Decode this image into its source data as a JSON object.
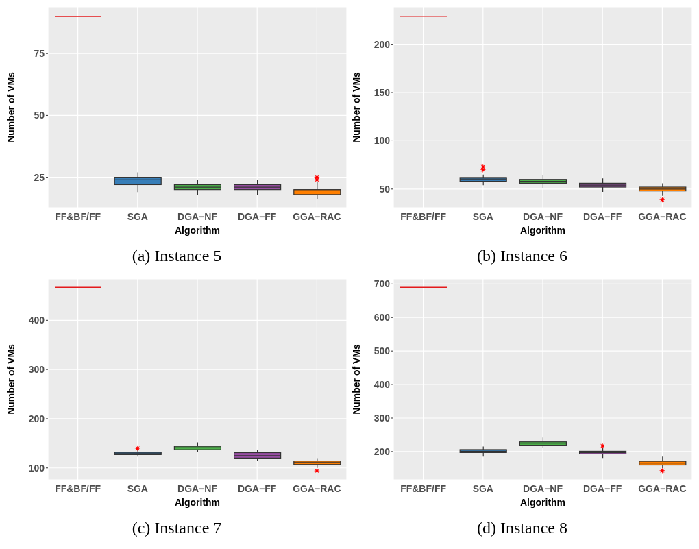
{
  "chart_data": [
    {
      "type": "box",
      "title": "(a) Instance 5",
      "xlabel": "Algorithm",
      "ylabel": "Number of VMs",
      "categories": [
        "FF&BF/FF",
        "SGA",
        "DGA−NF",
        "DGA−FF",
        "GGA−RAC"
      ],
      "colors": [
        "#e41a1c",
        "#377eb8",
        "#4daf4a",
        "#984ea3",
        "#ff7f00"
      ],
      "ylim": [
        12.7,
        93.9
      ],
      "yticks": [
        25,
        50,
        75
      ],
      "grid": true,
      "marker": "star",
      "boxes": [
        {
          "low": 90,
          "q1": 90,
          "median": 90,
          "q3": 90,
          "high": 90
        },
        {
          "low": 19,
          "q1": 22,
          "median": 24,
          "q3": 25,
          "high": 27
        },
        {
          "low": 18,
          "q1": 20,
          "median": 21,
          "q3": 22,
          "high": 24
        },
        {
          "low": 18,
          "q1": 20,
          "median": 21,
          "q3": 22,
          "high": 24
        },
        {
          "low": 16,
          "q1": 18,
          "median": 19.5,
          "q3": 20,
          "high": 23,
          "outliers": [
            24,
            25
          ]
        }
      ]
    },
    {
      "type": "box",
      "title": "(b) Instance 6",
      "xlabel": "Algorithm",
      "ylabel": "Number of VMs",
      "categories": [
        "FF&BF/FF",
        "SGA",
        "DGA−NF",
        "DGA−FF",
        "GGA−RAC"
      ],
      "colors": [
        "#e41a1c",
        "#377eb8",
        "#4daf4a",
        "#984ea3",
        "#ff7f00"
      ],
      "ylim": [
        30.7,
        238.8
      ],
      "yticks": [
        50,
        100,
        150,
        200
      ],
      "grid": true,
      "marker": "star",
      "boxes": [
        {
          "low": 229,
          "q1": 229,
          "median": 229,
          "q3": 229,
          "high": 229
        },
        {
          "low": 54,
          "q1": 58,
          "median": 60.5,
          "q3": 62,
          "high": 65,
          "outliers": [
            70,
            73
          ]
        },
        {
          "low": 51,
          "q1": 56,
          "median": 58,
          "q3": 60,
          "high": 64
        },
        {
          "low": 47,
          "q1": 52,
          "median": 54,
          "q3": 56,
          "high": 61
        },
        {
          "low": 43,
          "q1": 48,
          "median": 50,
          "q3": 52,
          "high": 56,
          "outliers": [
            39
          ]
        }
      ]
    },
    {
      "type": "box",
      "title": "(c) Instance 7",
      "xlabel": "Algorithm",
      "ylabel": "Number of VMs",
      "categories": [
        "FF&BF/FF",
        "SGA",
        "DGA−NF",
        "DGA−FF",
        "GGA−RAC"
      ],
      "colors": [
        "#e41a1c",
        "#377eb8",
        "#4daf4a",
        "#984ea3",
        "#ff7f00"
      ],
      "ylim": [
        76,
        484
      ],
      "yticks": [
        100,
        200,
        300,
        400
      ],
      "grid": true,
      "marker": "star",
      "boxes": [
        {
          "low": 467,
          "q1": 467,
          "median": 467,
          "q3": 467,
          "high": 467
        },
        {
          "low": 123,
          "q1": 127,
          "median": 130,
          "q3": 132,
          "high": 137,
          "outliers": [
            140
          ]
        },
        {
          "low": 132,
          "q1": 137,
          "median": 141,
          "q3": 144,
          "high": 152
        },
        {
          "low": 114,
          "q1": 120,
          "median": 125,
          "q3": 131,
          "high": 136
        },
        {
          "low": 100,
          "q1": 107,
          "median": 111,
          "q3": 114,
          "high": 120,
          "outliers": [
            94
          ]
        }
      ]
    },
    {
      "type": "box",
      "title": "(d) Instance 8",
      "xlabel": "Algorithm",
      "ylabel": "Number of VMs",
      "categories": [
        "FF&BF/FF",
        "SGA",
        "DGA−NF",
        "DGA−FF",
        "GGA−RAC"
      ],
      "colors": [
        "#e41a1c",
        "#377eb8",
        "#4daf4a",
        "#984ea3",
        "#ff7f00"
      ],
      "ylim": [
        116,
        715
      ],
      "yticks": [
        200,
        300,
        400,
        500,
        600,
        700
      ],
      "grid": true,
      "marker": "star",
      "boxes": [
        {
          "low": 690,
          "q1": 690,
          "median": 690,
          "q3": 690,
          "high": 690
        },
        {
          "low": 185,
          "q1": 197,
          "median": 201,
          "q3": 206,
          "high": 215
        },
        {
          "low": 210,
          "q1": 219,
          "median": 225,
          "q3": 229,
          "high": 242
        },
        {
          "low": 181,
          "q1": 193,
          "median": 197,
          "q3": 201,
          "high": 211,
          "outliers": [
            217
          ]
        },
        {
          "low": 151,
          "q1": 160,
          "median": 166,
          "q3": 171,
          "high": 185,
          "outliers": [
            143
          ]
        }
      ]
    }
  ]
}
